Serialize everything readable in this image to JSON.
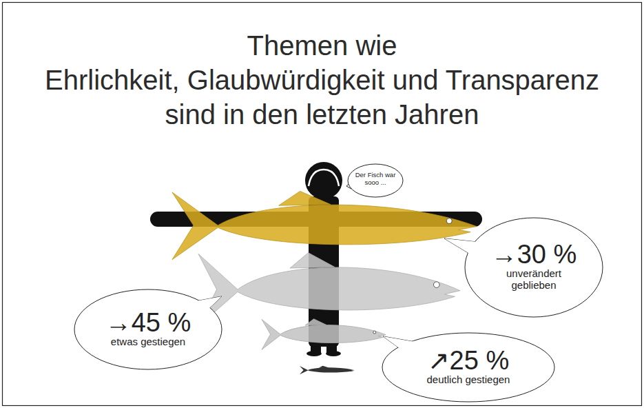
{
  "chart_data": {
    "type": "pictogram",
    "title": [
      "Themen wie",
      "Ehrlichkeit, Glaubwürdigkeit und Transparenz",
      "sind in den letzten Jahren"
    ],
    "annotation": [
      "Der Fisch war",
      "sooo ..."
    ],
    "categories": [
      "unverändert geblieben",
      "etwas gestiegen",
      "deutlich gestiegen"
    ],
    "values": [
      30,
      45,
      25
    ],
    "value_labels": [
      "→30 %",
      "→45 %",
      "↗25 %"
    ],
    "colors": [
      "#d9ab1e",
      "#c8c8c8",
      "#c2c2c2"
    ],
    "data_labels": true,
    "tick_labels": false
  }
}
